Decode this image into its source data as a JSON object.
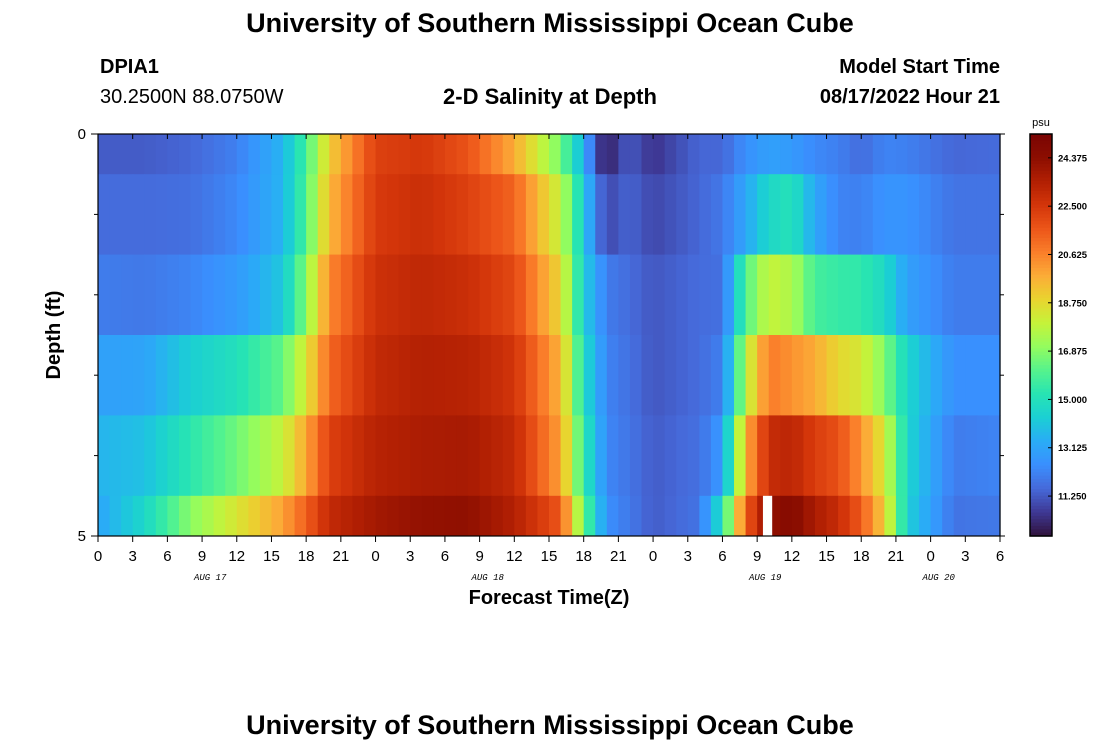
{
  "header": {
    "title": "University of Southern Mississippi Ocean Cube",
    "station_id": "DPIA1",
    "station_coords": "30.2500N  88.0750W",
    "chart_title": "2-D Salinity at Depth",
    "model_label": "Model Start Time",
    "model_time": "08/17/2022 Hour 21"
  },
  "footer": {
    "title": "University of Southern Mississippi Ocean Cube"
  },
  "colors": {
    "scale": [
      "#30123b",
      "#3e3894",
      "#4669d9",
      "#3a8ffe",
      "#2aacf6",
      "#1bcfd4",
      "#27e4b3",
      "#55f38d",
      "#94fc5e",
      "#c5f33a",
      "#e9d42f",
      "#fbac37",
      "#fa7e2a",
      "#ec5519",
      "#d3350a",
      "#b11f03",
      "#8c0e01",
      "#7a0403"
    ]
  },
  "chart_data": {
    "type": "heatmap",
    "title": "2-D Salinity at Depth",
    "xlabel": "Forecast Time(Z)",
    "ylabel": "Depth (ft)",
    "colorbar_unit": "psu",
    "colorbar_ticks": [
      "24.375",
      "22.500",
      "20.625",
      "18.750",
      "16.875",
      "15.000",
      "13.125",
      "11.250"
    ],
    "colorbar_values": [
      24.375,
      22.5,
      20.625,
      18.75,
      16.875,
      15.0,
      13.125,
      11.25
    ],
    "zlim": [
      9.7,
      25.3
    ],
    "ylim": [
      0,
      5
    ],
    "y_tick_labels": [
      {
        "value": 0,
        "label": "0"
      },
      {
        "value": 5,
        "label": "5"
      }
    ],
    "y_minor_ticks": [
      1,
      2,
      3,
      4
    ],
    "xlim": [
      0,
      78
    ],
    "x_ticks": [
      0,
      3,
      6,
      9,
      12,
      15,
      18,
      21,
      24,
      27,
      30,
      33,
      36,
      39,
      42,
      45,
      48,
      51,
      54,
      57,
      60,
      63,
      66,
      69,
      72,
      75,
      78
    ],
    "x_tick_labels": [
      "0",
      "3",
      "6",
      "9",
      "12",
      "15",
      "18",
      "21",
      "0",
      "3",
      "6",
      "9",
      "12",
      "15",
      "18",
      "21",
      "0",
      "3",
      "6",
      "9",
      "12",
      "15",
      "18",
      "21",
      "0",
      "3",
      "6"
    ],
    "date_labels": [
      {
        "hour": 9.7,
        "label": "AUG 17"
      },
      {
        "hour": 33.7,
        "label": "AUG 18"
      },
      {
        "hour": 57.7,
        "label": "AUG 19"
      },
      {
        "hour": 72.7,
        "label": "AUG 20"
      }
    ],
    "depth_layers": [
      {
        "depth_top": 0,
        "depth_bottom": 0.5
      },
      {
        "depth_top": 0.5,
        "depth_bottom": 1.5
      },
      {
        "depth_top": 1.5,
        "depth_bottom": 2.5
      },
      {
        "depth_top": 2.5,
        "depth_bottom": 3.5
      },
      {
        "depth_top": 3.5,
        "depth_bottom": 4.5
      },
      {
        "depth_top": 4.5,
        "depth_bottom": 5
      }
    ],
    "time_anchors": [
      0,
      4,
      8,
      12,
      16,
      18,
      20,
      24,
      28,
      32,
      36,
      40,
      42,
      44,
      48,
      52,
      54,
      56,
      58,
      60,
      62,
      64,
      66,
      68,
      70,
      74,
      78
    ],
    "salinity": [
      [
        11.3,
        11.3,
        11.5,
        12.1,
        13.6,
        15.8,
        19.0,
        22.2,
        22.5,
        21.7,
        19.8,
        16.6,
        13.5,
        12.0,
        10.5,
        11.5,
        11.5,
        12.5,
        13.0,
        12.8,
        12.3,
        12.1,
        11.6,
        12.2,
        12.1,
        11.5,
        11.6
      ],
      [
        11.6,
        11.6,
        11.7,
        12.3,
        13.6,
        16.0,
        19.5,
        22.4,
        22.8,
        22.2,
        21.3,
        17.9,
        14.3,
        12.0,
        10.9,
        11.5,
        11.9,
        13.2,
        14.6,
        15.1,
        13.2,
        12.2,
        12.1,
        12.6,
        12.6,
        11.8,
        11.8
      ],
      [
        12.0,
        11.9,
        12.2,
        12.8,
        14.1,
        16.9,
        20.5,
        22.7,
        23.1,
        22.8,
        22.0,
        18.8,
        14.3,
        12.0,
        11.2,
        11.6,
        11.7,
        16.0,
        18.0,
        17.5,
        15.8,
        15.5,
        15.4,
        14.7,
        13.0,
        12.0,
        12.0
      ],
      [
        13.0,
        13.1,
        14.3,
        15.0,
        16.3,
        18.4,
        21.2,
        23.0,
        23.4,
        23.3,
        22.6,
        19.6,
        14.8,
        12.2,
        11.2,
        11.6,
        12.1,
        17.7,
        20.8,
        20.3,
        19.8,
        18.8,
        18.3,
        16.8,
        14.5,
        12.5,
        12.5
      ],
      [
        13.6,
        13.9,
        15.3,
        16.5,
        18.0,
        19.9,
        22.2,
        23.3,
        23.6,
        23.7,
        23.0,
        20.0,
        15.4,
        12.3,
        11.3,
        11.7,
        12.8,
        19.6,
        22.9,
        23.2,
        22.3,
        21.8,
        20.3,
        18.3,
        14.5,
        12.0,
        12.2
      ],
      [
        13.2,
        14.6,
        16.9,
        18.4,
        20.0,
        21.4,
        23.0,
        23.8,
        24.2,
        24.3,
        23.4,
        21.6,
        16.4,
        12.5,
        11.3,
        11.8,
        15.0,
        21.4,
        24.2,
        24.7,
        23.6,
        22.9,
        21.5,
        19.0,
        14.3,
        11.8,
        11.9
      ]
    ],
    "dark_spot": {
      "hour_start": 42,
      "hour_end": 46,
      "depth_top": 0,
      "depth_bottom": 1.5,
      "value": 9.9
    },
    "missing_data": {
      "hour_start": 57.5,
      "hour_end": 58.3,
      "depth_top": 4.5,
      "depth_bottom": 5
    }
  }
}
